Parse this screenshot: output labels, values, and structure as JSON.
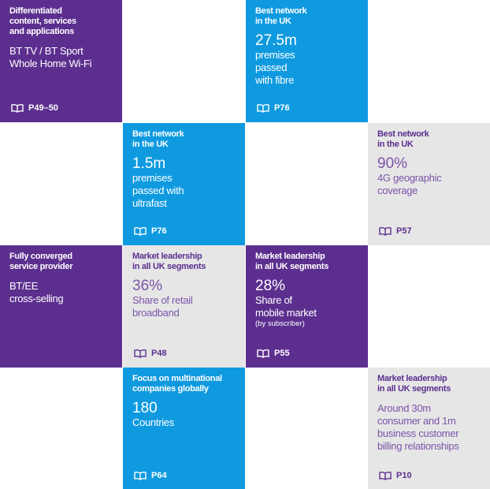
{
  "tiles": [
    {
      "heading": [
        "Differentiated",
        "content, services",
        "and applications"
      ],
      "body": [
        "BT TV / BT Sport",
        "Whole Home Wi-Fi"
      ],
      "page": "P49–50"
    },
    {
      "heading": [
        "Best network",
        "in the UK"
      ],
      "headline": "27.5m",
      "body": [
        "premises",
        "passed",
        "with fibre"
      ],
      "page": "P76"
    },
    {
      "heading": [
        "Best network",
        "in the UK"
      ],
      "headline": "1.5m",
      "body": [
        "premises",
        "passed with",
        "ultrafast"
      ],
      "page": "P76"
    },
    {
      "heading": [
        "Best network",
        "in the UK"
      ],
      "headline": "90%",
      "body": [
        "4G geographic",
        "coverage"
      ],
      "page": "P57"
    },
    {
      "heading": [
        "Fully converged",
        "service provider"
      ],
      "body": [
        "BT/EE",
        "cross-selling"
      ]
    },
    {
      "heading": [
        "Market leadership",
        "in all UK segments"
      ],
      "headline": "36%",
      "body": [
        "Share of retail",
        "broadband"
      ],
      "page": "P48"
    },
    {
      "heading": [
        "Market leadership",
        "in all UK segments"
      ],
      "headline": "28%",
      "body": [
        "Share of",
        "mobile market"
      ],
      "note": "(by subscriber)",
      "page": "P55"
    },
    {
      "heading": [
        "Focus on multinational",
        "companies globally"
      ],
      "headline": "180",
      "body": [
        "Countries"
      ],
      "page": "P64"
    },
    {
      "heading": [
        "Market leadership",
        "in all UK segments"
      ],
      "body": [
        "Around 30m",
        "consumer and 1m",
        "business customer",
        "billing relationships"
      ],
      "page": "P10"
    }
  ]
}
